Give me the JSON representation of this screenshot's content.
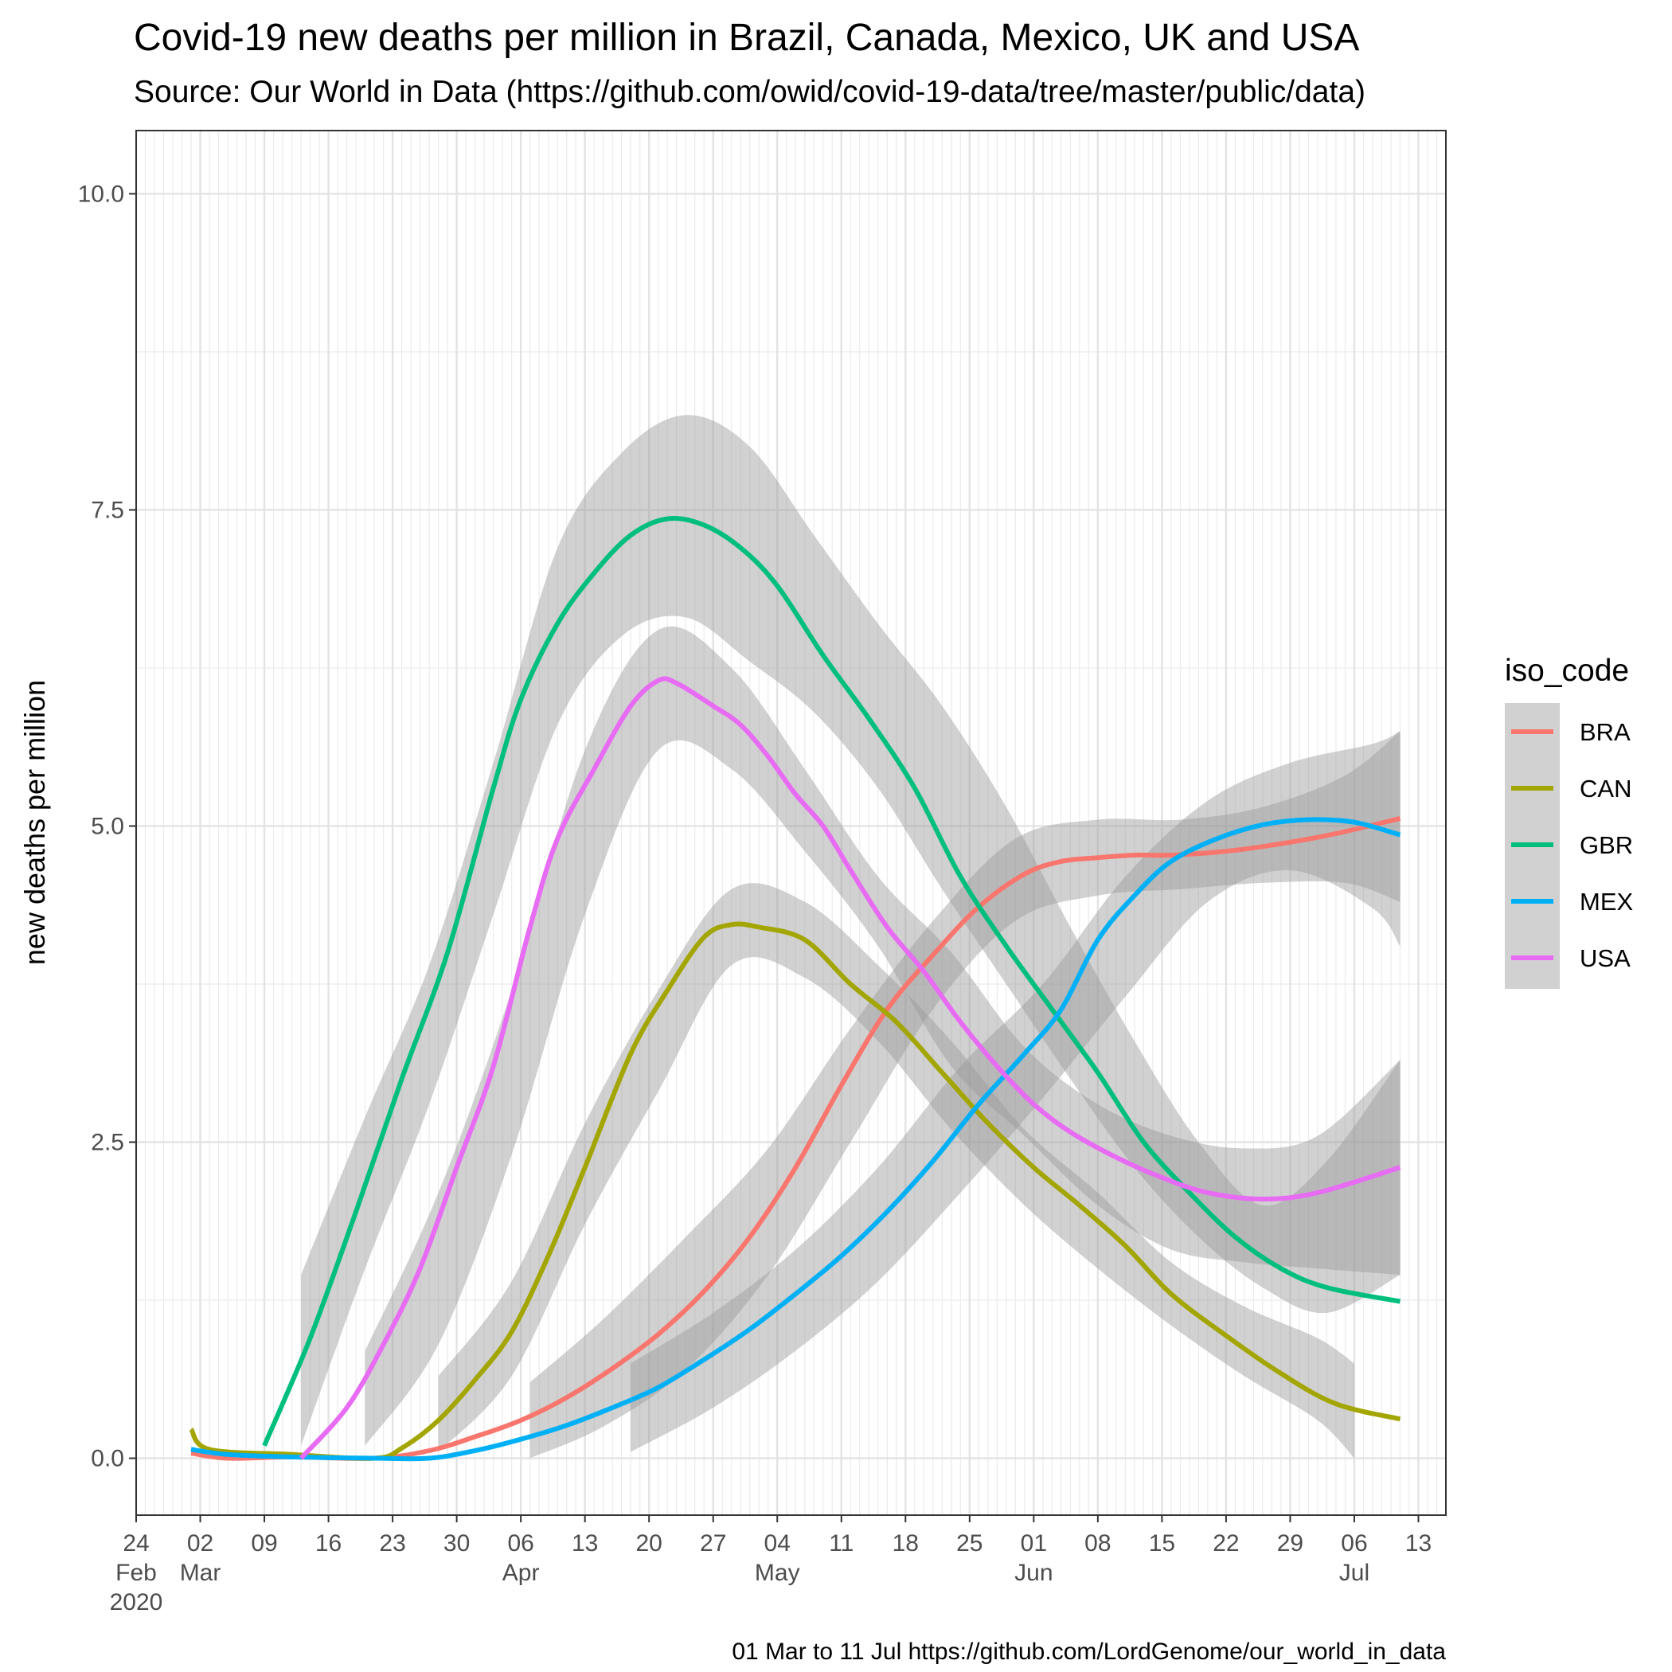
{
  "chart_data": {
    "type": "line",
    "title": "Covid-19 new deaths per million in Brazil, Canada, Mexico, UK and USA",
    "subtitle": "Source: Our World in Data  (https://github.com/owid/covid-19-data/tree/master/public/data)",
    "caption": "01 Mar to 11 Jul https://github.com/LordGenome/our_world_in_data",
    "ylabel": "new deaths per million",
    "xlabel": "",
    "xlim": [
      "2020-02-24",
      "2020-07-16"
    ],
    "ylim": [
      -0.45,
      10.5
    ],
    "yticks": [
      {
        "value": 0,
        "label": "0.0"
      },
      {
        "value": 2.5,
        "label": "2.5"
      },
      {
        "value": 5,
        "label": "5.0"
      },
      {
        "value": 7.5,
        "label": "7.5"
      },
      {
        "value": 10,
        "label": "10.0"
      }
    ],
    "xticks": [
      {
        "date": "2020-02-24",
        "lines": [
          "24",
          "Feb",
          "2020"
        ]
      },
      {
        "date": "2020-03-02",
        "lines": [
          "02",
          "Mar"
        ]
      },
      {
        "date": "2020-03-09",
        "lines": [
          "09"
        ]
      },
      {
        "date": "2020-03-16",
        "lines": [
          "16"
        ]
      },
      {
        "date": "2020-03-23",
        "lines": [
          "23"
        ]
      },
      {
        "date": "2020-03-30",
        "lines": [
          "30"
        ]
      },
      {
        "date": "2020-04-06",
        "lines": [
          "06",
          "Apr"
        ]
      },
      {
        "date": "2020-04-13",
        "lines": [
          "13"
        ]
      },
      {
        "date": "2020-04-20",
        "lines": [
          "20"
        ]
      },
      {
        "date": "2020-04-27",
        "lines": [
          "27"
        ]
      },
      {
        "date": "2020-05-04",
        "lines": [
          "04",
          "May"
        ]
      },
      {
        "date": "2020-05-11",
        "lines": [
          "11"
        ]
      },
      {
        "date": "2020-05-18",
        "lines": [
          "18"
        ]
      },
      {
        "date": "2020-05-25",
        "lines": [
          "25"
        ]
      },
      {
        "date": "2020-06-01",
        "lines": [
          "01",
          "Jun"
        ]
      },
      {
        "date": "2020-06-08",
        "lines": [
          "08"
        ]
      },
      {
        "date": "2020-06-15",
        "lines": [
          "15"
        ]
      },
      {
        "date": "2020-06-22",
        "lines": [
          "22"
        ]
      },
      {
        "date": "2020-06-29",
        "lines": [
          "29"
        ]
      },
      {
        "date": "2020-07-06",
        "lines": [
          "06",
          "Jul"
        ]
      },
      {
        "date": "2020-07-13",
        "lines": [
          "13"
        ]
      }
    ],
    "grid": true,
    "minor_grid": "daily",
    "legend": {
      "title": "iso_code",
      "placement": "right"
    },
    "band_color": "#999999",
    "series": [
      {
        "name": "BRA",
        "color": "#F8766D",
        "x": [
          "2020-03-01",
          "2020-03-05",
          "2020-03-12",
          "2020-03-21",
          "2020-03-27",
          "2020-04-01",
          "2020-04-06",
          "2020-04-11",
          "2020-04-16",
          "2020-04-21",
          "2020-04-26",
          "2020-05-01",
          "2020-05-06",
          "2020-05-11",
          "2020-05-16",
          "2020-05-21",
          "2020-05-26",
          "2020-05-31",
          "2020-06-04",
          "2020-06-08",
          "2020-06-12",
          "2020-06-16",
          "2020-06-22",
          "2020-06-28",
          "2020-07-04",
          "2020-07-11"
        ],
        "y": [
          0.04,
          0.0,
          0.01,
          0.0,
          0.06,
          0.17,
          0.3,
          0.48,
          0.71,
          0.98,
          1.32,
          1.75,
          2.3,
          2.95,
          3.55,
          3.98,
          4.36,
          4.62,
          4.72,
          4.75,
          4.77,
          4.77,
          4.8,
          4.86,
          4.94,
          5.06
        ],
        "band_x": [
          "2020-04-07",
          "2020-04-15",
          "2020-04-24",
          "2020-05-03",
          "2020-05-12",
          "2020-05-21",
          "2020-05-30",
          "2020-06-08",
          "2020-06-17",
          "2020-06-26",
          "2020-07-05",
          "2020-07-11"
        ],
        "band_lo": [
          0.0,
          0.25,
          0.7,
          1.45,
          2.5,
          3.55,
          4.25,
          4.45,
          4.5,
          4.55,
          4.55,
          4.4
        ],
        "band_hi": [
          0.6,
          1.1,
          1.75,
          2.45,
          3.4,
          4.25,
          4.9,
          5.05,
          5.05,
          5.15,
          5.4,
          5.75
        ]
      },
      {
        "name": "CAN",
        "color": "#A3A500",
        "x": [
          "2020-03-01",
          "2020-03-03",
          "2020-03-12",
          "2020-03-21",
          "2020-03-24",
          "2020-03-28",
          "2020-04-01",
          "2020-04-05",
          "2020-04-09",
          "2020-04-13",
          "2020-04-18",
          "2020-04-22",
          "2020-04-26",
          "2020-04-29",
          "2020-05-02",
          "2020-05-07",
          "2020-05-12",
          "2020-05-17",
          "2020-05-22",
          "2020-05-27",
          "2020-06-01",
          "2020-06-06",
          "2020-06-11",
          "2020-06-16",
          "2020-06-22",
          "2020-06-28",
          "2020-07-04",
          "2020-07-11"
        ],
        "y": [
          0.23,
          0.07,
          0.03,
          0.0,
          0.08,
          0.3,
          0.62,
          1.0,
          1.6,
          2.3,
          3.2,
          3.7,
          4.12,
          4.22,
          4.2,
          4.1,
          3.75,
          3.45,
          3.05,
          2.65,
          2.3,
          2.0,
          1.68,
          1.3,
          0.97,
          0.67,
          0.43,
          0.31
        ],
        "band_x": [
          "2020-03-28",
          "2020-04-05",
          "2020-04-13",
          "2020-04-21",
          "2020-04-29",
          "2020-05-07",
          "2020-05-15",
          "2020-05-23",
          "2020-05-31",
          "2020-06-08",
          "2020-06-16",
          "2020-06-24",
          "2020-07-02",
          "2020-07-06"
        ],
        "band_lo": [
          0.05,
          0.65,
          1.85,
          2.9,
          3.9,
          3.8,
          3.3,
          2.6,
          2.0,
          1.5,
          1.05,
          0.65,
          0.3,
          0.0
        ],
        "band_hi": [
          0.65,
          1.4,
          2.65,
          3.7,
          4.5,
          4.4,
          3.9,
          3.3,
          2.6,
          2.1,
          1.55,
          1.2,
          0.95,
          0.75
        ]
      },
      {
        "name": "GBR",
        "color": "#00BF7D",
        "x": [
          "2020-03-09",
          "2020-03-14",
          "2020-03-19",
          "2020-03-24",
          "2020-03-29",
          "2020-04-03",
          "2020-04-06",
          "2020-04-10",
          "2020-04-14",
          "2020-04-18",
          "2020-04-22",
          "2020-04-26",
          "2020-04-30",
          "2020-05-04",
          "2020-05-09",
          "2020-05-14",
          "2020-05-19",
          "2020-05-24",
          "2020-05-29",
          "2020-06-03",
          "2020-06-08",
          "2020-06-13",
          "2020-06-18",
          "2020-06-23",
          "2020-06-28",
          "2020-07-03",
          "2020-07-11"
        ],
        "y": [
          0.1,
          0.95,
          1.95,
          3.0,
          4.0,
          5.3,
          6.0,
          6.6,
          7.0,
          7.3,
          7.43,
          7.38,
          7.2,
          6.9,
          6.35,
          5.85,
          5.3,
          4.6,
          4.05,
          3.55,
          3.05,
          2.5,
          2.1,
          1.75,
          1.5,
          1.35,
          1.24
        ],
        "band_x": [
          "2020-03-13",
          "2020-03-20",
          "2020-03-27",
          "2020-04-03",
          "2020-04-10",
          "2020-04-17",
          "2020-04-24",
          "2020-05-01",
          "2020-05-08",
          "2020-05-15",
          "2020-05-22",
          "2020-05-29",
          "2020-06-05",
          "2020-06-12",
          "2020-06-19",
          "2020-06-26",
          "2020-07-03",
          "2020-07-11"
        ],
        "band_lo": [
          0.1,
          1.5,
          2.8,
          4.3,
          5.8,
          6.5,
          6.65,
          6.3,
          5.9,
          5.3,
          4.5,
          3.75,
          3.0,
          2.3,
          1.75,
          1.35,
          1.15,
          1.45
        ],
        "band_hi": [
          1.45,
          2.7,
          3.9,
          5.5,
          7.2,
          7.95,
          8.25,
          8.0,
          7.3,
          6.6,
          5.95,
          5.15,
          4.2,
          3.3,
          2.5,
          2.0,
          2.35,
          3.15
        ]
      },
      {
        "name": "MEX",
        "color": "#00B0F6",
        "x": [
          "2020-03-01",
          "2020-03-05",
          "2020-03-12",
          "2020-03-21",
          "2020-03-27",
          "2020-04-01",
          "2020-04-06",
          "2020-04-11",
          "2020-04-16",
          "2020-04-21",
          "2020-04-26",
          "2020-05-01",
          "2020-05-06",
          "2020-05-11",
          "2020-05-16",
          "2020-05-21",
          "2020-05-26",
          "2020-05-31",
          "2020-06-04",
          "2020-06-08",
          "2020-06-12",
          "2020-06-16",
          "2020-06-21",
          "2020-06-26",
          "2020-07-01",
          "2020-07-06",
          "2020-07-11"
        ],
        "y": [
          0.07,
          0.03,
          0.01,
          0.0,
          0.0,
          0.06,
          0.15,
          0.26,
          0.4,
          0.56,
          0.78,
          1.02,
          1.3,
          1.6,
          1.95,
          2.35,
          2.8,
          3.2,
          3.55,
          4.1,
          4.45,
          4.72,
          4.9,
          5.01,
          5.05,
          5.03,
          4.93
        ],
        "band_x": [
          "2020-04-18",
          "2020-04-27",
          "2020-05-06",
          "2020-05-15",
          "2020-05-24",
          "2020-06-02",
          "2020-06-11",
          "2020-06-20",
          "2020-06-29",
          "2020-07-08",
          "2020-07-11"
        ],
        "band_lo": [
          0.05,
          0.4,
          0.85,
          1.4,
          2.1,
          2.85,
          3.65,
          4.4,
          4.65,
          4.35,
          4.05
        ],
        "band_hi": [
          0.75,
          1.15,
          1.65,
          2.3,
          3.1,
          3.75,
          4.6,
          5.2,
          5.5,
          5.65,
          5.75
        ]
      },
      {
        "name": "USA",
        "color": "#E76BF3",
        "x": [
          "2020-03-13",
          "2020-03-18",
          "2020-03-22",
          "2020-03-26",
          "2020-03-30",
          "2020-04-03",
          "2020-04-07",
          "2020-04-10",
          "2020-04-14",
          "2020-04-18",
          "2020-04-21",
          "2020-04-23",
          "2020-04-27",
          "2020-04-30",
          "2020-05-03",
          "2020-05-06",
          "2020-05-09",
          "2020-05-12",
          "2020-05-16",
          "2020-05-20",
          "2020-05-24",
          "2020-05-28",
          "2020-06-01",
          "2020-06-05",
          "2020-06-10",
          "2020-06-15",
          "2020-06-20",
          "2020-06-26",
          "2020-07-02",
          "2020-07-11"
        ],
        "y": [
          0.0,
          0.4,
          0.9,
          1.5,
          2.3,
          3.1,
          4.2,
          4.9,
          5.45,
          5.95,
          6.15,
          6.13,
          5.95,
          5.8,
          5.55,
          5.25,
          5.0,
          4.65,
          4.2,
          3.85,
          3.45,
          3.1,
          2.8,
          2.58,
          2.38,
          2.22,
          2.1,
          2.05,
          2.1,
          2.3
        ],
        "band_x": [
          "2020-03-20",
          "2020-03-28",
          "2020-04-05",
          "2020-04-13",
          "2020-04-21",
          "2020-04-29",
          "2020-05-07",
          "2020-05-15",
          "2020-05-23",
          "2020-05-31",
          "2020-06-08",
          "2020-06-16",
          "2020-06-24",
          "2020-07-02",
          "2020-07-11"
        ],
        "band_lo": [
          0.1,
          0.9,
          2.4,
          4.3,
          5.6,
          5.45,
          4.8,
          4.05,
          3.1,
          2.55,
          2.0,
          1.65,
          1.55,
          1.5,
          1.45
        ],
        "band_hi": [
          0.85,
          2.1,
          3.7,
          5.6,
          6.55,
          6.25,
          5.45,
          4.6,
          4.0,
          3.25,
          2.8,
          2.55,
          2.45,
          2.55,
          3.15
        ]
      }
    ]
  }
}
